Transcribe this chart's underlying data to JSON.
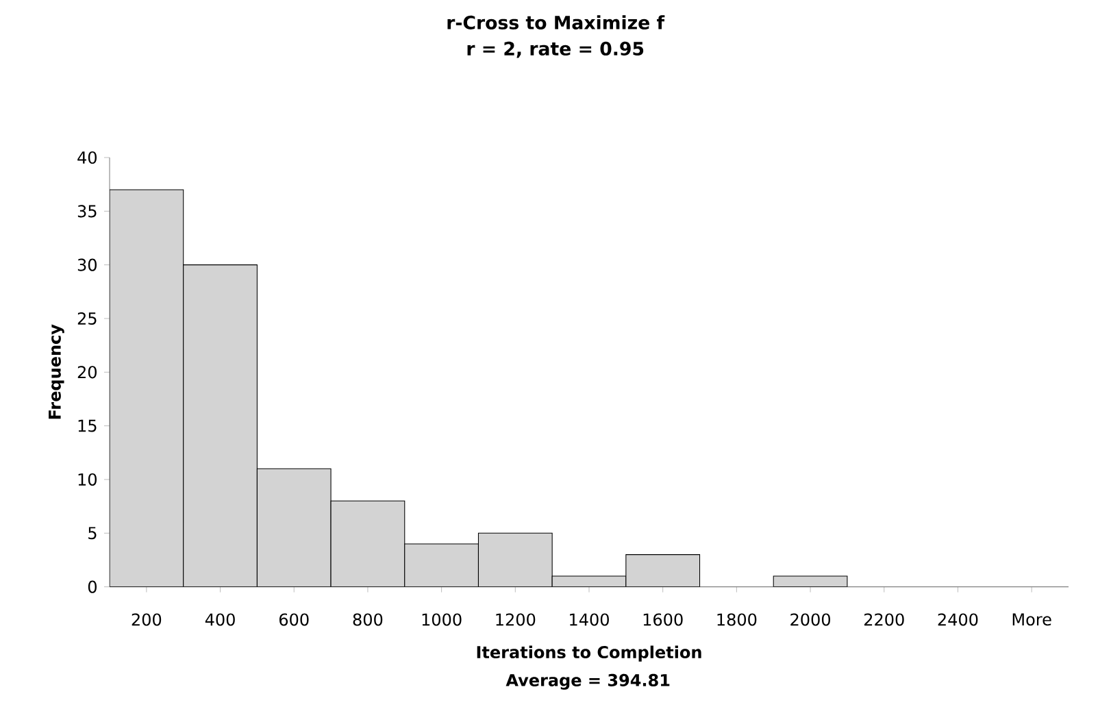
{
  "chart_data": {
    "type": "bar",
    "title": "r-Cross to Maximize f",
    "subtitle": "r = 2, rate = 0.95",
    "xlabel": "Iterations to Completion",
    "ylabel": "Frequency",
    "annotations": [
      "Average = 394.81"
    ],
    "categories": [
      "200",
      "400",
      "600",
      "800",
      "1000",
      "1200",
      "1400",
      "1600",
      "1800",
      "2000",
      "2200",
      "2400",
      "More"
    ],
    "values": [
      37,
      30,
      11,
      8,
      4,
      5,
      1,
      3,
      0,
      1,
      0,
      0,
      0
    ],
    "color": "#d3d3d3",
    "ylim": [
      0,
      40
    ],
    "yticks": [
      0,
      5,
      10,
      15,
      20,
      25,
      30,
      35,
      40
    ],
    "grid": false
  }
}
